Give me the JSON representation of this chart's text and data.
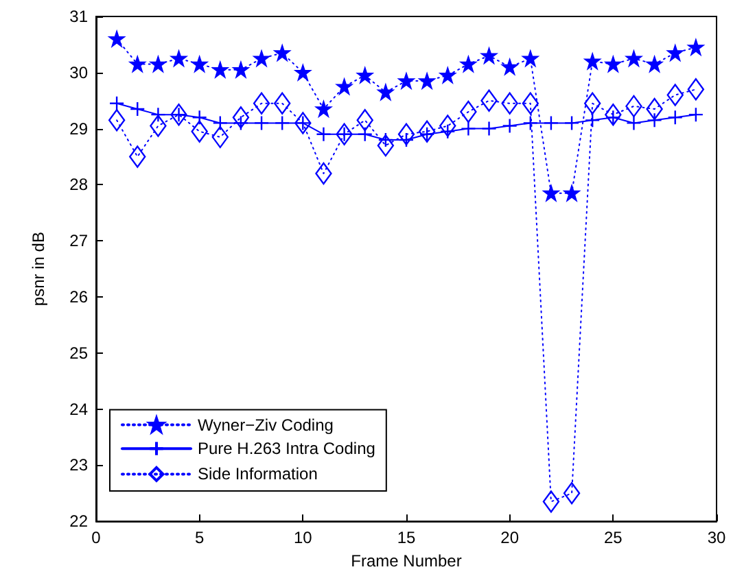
{
  "chart_data": {
    "type": "line",
    "xlabel": "Frame Number",
    "ylabel": "psnr in dB",
    "x": [
      1,
      2,
      3,
      4,
      5,
      6,
      7,
      8,
      9,
      10,
      11,
      12,
      13,
      14,
      15,
      16,
      17,
      18,
      19,
      20,
      21,
      22,
      23,
      24,
      25,
      26,
      27,
      28,
      29
    ],
    "xlim": [
      0,
      30
    ],
    "xticks": [
      0,
      5,
      10,
      15,
      20,
      25,
      30
    ],
    "ylim": [
      22,
      31
    ],
    "yticks": [
      22,
      23,
      24,
      25,
      26,
      27,
      28,
      29,
      30,
      31
    ],
    "grid": false,
    "legend": "bottom left",
    "series": [
      {
        "name": "Wyner−Ziv Coding",
        "color": "#0000ff",
        "marker": "star",
        "line_style": "dotted",
        "values": [
          30.6,
          30.15,
          30.15,
          30.25,
          30.15,
          30.05,
          30.05,
          30.25,
          30.35,
          30.0,
          29.35,
          29.75,
          29.95,
          29.65,
          29.85,
          29.85,
          29.95,
          30.15,
          30.3,
          30.1,
          30.25,
          27.85,
          27.85,
          30.2,
          30.15,
          30.25,
          30.15,
          30.35,
          30.45
        ]
      },
      {
        "name": "Pure H.263 Intra Coding",
        "color": "#0000ff",
        "marker": "cross",
        "line_style": "solid",
        "values": [
          29.45,
          29.35,
          29.25,
          29.25,
          29.2,
          29.1,
          29.1,
          29.1,
          29.1,
          29.1,
          28.9,
          28.9,
          28.9,
          28.8,
          28.8,
          28.9,
          28.95,
          29.0,
          29.0,
          29.05,
          29.1,
          29.1,
          29.1,
          29.15,
          29.2,
          29.1,
          29.15,
          29.2,
          29.25
        ]
      },
      {
        "name": "Side Information",
        "color": "#0000ff",
        "marker": "diamond",
        "line_style": "dotted",
        "values": [
          29.15,
          28.5,
          29.05,
          29.25,
          28.95,
          28.85,
          29.2,
          29.45,
          29.45,
          29.1,
          28.2,
          28.9,
          29.15,
          28.7,
          28.9,
          28.95,
          29.05,
          29.3,
          29.5,
          29.45,
          29.45,
          22.35,
          22.5,
          29.45,
          29.25,
          29.4,
          29.35,
          29.6,
          29.7
        ]
      }
    ]
  }
}
